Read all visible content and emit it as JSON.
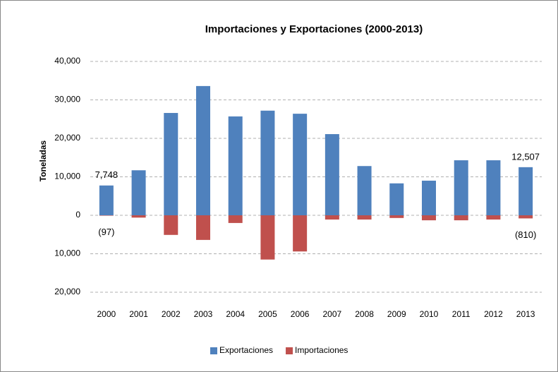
{
  "chart_data": {
    "type": "bar",
    "title": "Importaciones y Exportaciones (2000-2013)",
    "y_label": "Toneladas",
    "categories": [
      "2000",
      "2001",
      "2002",
      "2003",
      "2004",
      "2005",
      "2006",
      "2007",
      "2008",
      "2009",
      "2010",
      "2011",
      "2012",
      "2013"
    ],
    "series": [
      {
        "name": "Exportaciones",
        "color": "#4f81bd",
        "values": [
          7748,
          11700,
          26600,
          33600,
          25700,
          27200,
          26400,
          21100,
          12800,
          8300,
          9000,
          14300,
          14300,
          12507
        ],
        "value_labels": [
          "7,748",
          null,
          null,
          null,
          null,
          null,
          null,
          null,
          null,
          null,
          null,
          null,
          null,
          "12,507"
        ]
      },
      {
        "name": "Importaciones",
        "color": "#c0504d",
        "values": [
          -97,
          -600,
          -5100,
          -6400,
          -2000,
          -11500,
          -9400,
          -1100,
          -1100,
          -700,
          -1300,
          -1300,
          -1100,
          -810
        ],
        "value_labels": [
          "(97)",
          null,
          null,
          null,
          null,
          null,
          null,
          null,
          null,
          null,
          null,
          null,
          null,
          "(810)"
        ]
      }
    ],
    "ylim": [
      -20000,
      40000
    ],
    "yticks": [
      {
        "value": -20000,
        "label": "20,000"
      },
      {
        "value": -10000,
        "label": "10,000"
      },
      0,
      {
        "value": 10000,
        "label": "10,000"
      },
      {
        "value": 20000,
        "label": "20,000"
      },
      {
        "value": 30000,
        "label": "30,000"
      },
      {
        "value": 40000,
        "label": "40,000"
      }
    ],
    "grid": true,
    "legend": "bottom"
  }
}
